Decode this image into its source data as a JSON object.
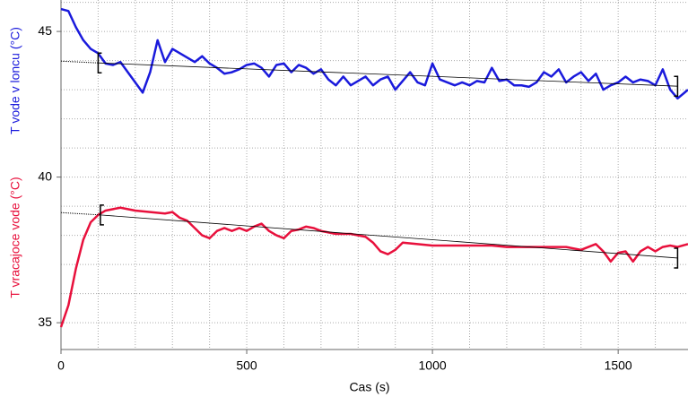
{
  "chart_data": {
    "type": "line",
    "xlabel": "Cas (s)",
    "xlim": [
      0,
      1688
    ],
    "xticks": [
      0,
      500,
      1000,
      1500
    ],
    "ylim": [
      34.08,
      46.08
    ],
    "yticks": [
      35,
      40,
      45
    ],
    "xgrid": [
      0,
      100,
      200,
      300,
      400,
      500,
      600,
      700,
      800,
      900,
      1000,
      1100,
      1200,
      1300,
      1400,
      1500,
      1600
    ],
    "ygrid": [
      35,
      36,
      37,
      38,
      39,
      40,
      41,
      42,
      43,
      44,
      45,
      46
    ],
    "grid": true,
    "series": [
      {
        "name": "T vode v loncu (°C)",
        "color": "#1a1adc",
        "x": [
          0,
          20,
          40,
          60,
          80,
          100,
          120,
          140,
          160,
          180,
          200,
          220,
          240,
          260,
          280,
          300,
          320,
          340,
          360,
          380,
          400,
          420,
          440,
          460,
          480,
          500,
          520,
          540,
          560,
          580,
          600,
          620,
          640,
          660,
          680,
          700,
          720,
          740,
          760,
          780,
          800,
          820,
          840,
          860,
          880,
          900,
          920,
          940,
          960,
          980,
          1000,
          1020,
          1040,
          1060,
          1080,
          1100,
          1120,
          1140,
          1160,
          1180,
          1200,
          1220,
          1240,
          1260,
          1280,
          1300,
          1320,
          1340,
          1360,
          1380,
          1400,
          1420,
          1440,
          1460,
          1480,
          1500,
          1520,
          1540,
          1560,
          1580,
          1600,
          1620,
          1640,
          1660,
          1688
        ],
        "values": [
          45.77,
          45.7,
          45.15,
          44.7,
          44.4,
          44.25,
          43.9,
          43.85,
          43.95,
          43.6,
          43.25,
          42.9,
          43.6,
          44.7,
          43.95,
          44.4,
          44.25,
          44.1,
          43.95,
          44.15,
          43.9,
          43.75,
          43.55,
          43.6,
          43.7,
          43.85,
          43.9,
          43.75,
          43.45,
          43.85,
          43.9,
          43.6,
          43.85,
          43.75,
          43.55,
          43.7,
          43.35,
          43.15,
          43.45,
          43.15,
          43.3,
          43.45,
          43.15,
          43.35,
          43.45,
          43.0,
          43.3,
          43.6,
          43.25,
          43.15,
          43.9,
          43.35,
          43.25,
          43.15,
          43.25,
          43.15,
          43.3,
          43.25,
          43.75,
          43.3,
          43.35,
          43.15,
          43.15,
          43.1,
          43.25,
          43.6,
          43.45,
          43.7,
          43.25,
          43.45,
          43.6,
          43.3,
          43.55,
          43.0,
          43.15,
          43.25,
          43.45,
          43.25,
          43.35,
          43.3,
          43.15,
          43.7,
          43.0,
          42.7,
          43.0
        ],
        "fit": {
          "x": [
            0,
            100,
            1660
          ],
          "values": [
            43.98,
            43.92,
            43.12
          ]
        }
      },
      {
        "name": "T vracajoce vode  (°C)",
        "color": "#e8103c",
        "x": [
          0,
          20,
          40,
          60,
          80,
          100,
          120,
          140,
          160,
          180,
          200,
          240,
          280,
          300,
          320,
          340,
          360,
          380,
          400,
          420,
          440,
          460,
          480,
          500,
          520,
          540,
          560,
          580,
          600,
          620,
          640,
          660,
          680,
          700,
          740,
          780,
          820,
          840,
          860,
          880,
          900,
          920,
          960,
          1000,
          1040,
          1080,
          1120,
          1160,
          1200,
          1240,
          1280,
          1320,
          1360,
          1400,
          1420,
          1440,
          1460,
          1480,
          1500,
          1520,
          1540,
          1560,
          1580,
          1600,
          1620,
          1640,
          1660,
          1688
        ],
        "values": [
          34.85,
          35.6,
          36.85,
          37.85,
          38.45,
          38.7,
          38.85,
          38.9,
          38.95,
          38.9,
          38.85,
          38.8,
          38.75,
          38.8,
          38.6,
          38.5,
          38.25,
          38.0,
          37.9,
          38.15,
          38.25,
          38.15,
          38.25,
          38.15,
          38.3,
          38.4,
          38.15,
          38.0,
          37.9,
          38.15,
          38.2,
          38.3,
          38.25,
          38.15,
          38.05,
          38.05,
          37.95,
          37.75,
          37.45,
          37.35,
          37.5,
          37.75,
          37.7,
          37.65,
          37.65,
          37.65,
          37.65,
          37.65,
          37.6,
          37.6,
          37.6,
          37.6,
          37.6,
          37.5,
          37.6,
          37.7,
          37.45,
          37.1,
          37.4,
          37.45,
          37.1,
          37.45,
          37.6,
          37.45,
          37.6,
          37.65,
          37.6,
          37.7
        ],
        "fit": {
          "x": [
            0,
            106,
            1660
          ],
          "values": [
            38.78,
            38.7,
            37.22
          ]
        }
      }
    ]
  }
}
